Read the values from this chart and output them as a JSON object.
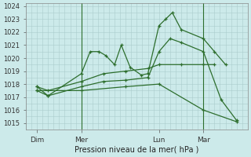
{
  "xlabel": "Pression niveau de la mer( hPa )",
  "background_color": "#cceaea",
  "grid_color": "#aacccc",
  "line_color": "#2d6e2d",
  "ylim": [
    1014.5,
    1024.2
  ],
  "xlim": [
    -0.5,
    9.5
  ],
  "x_tick_labels": [
    "Dim",
    "Mer",
    "Lun",
    "Mar"
  ],
  "x_tick_positions": [
    0,
    2,
    5.5,
    7.5
  ],
  "x_vlines": [
    2,
    7.5
  ],
  "series": [
    {
      "x": [
        0,
        0.5,
        2,
        2.4,
        2.8,
        3.1,
        3.5,
        3.8,
        4.2,
        4.7,
        5.0,
        5.5,
        5.8,
        6.1,
        6.5,
        7.5,
        8.0,
        8.5
      ],
      "y": [
        1017.8,
        1017.1,
        1018.8,
        1020.5,
        1020.5,
        1020.2,
        1019.5,
        1021.0,
        1019.3,
        1018.7,
        1018.8,
        1022.5,
        1023.0,
        1023.5,
        1022.2,
        1021.5,
        1020.5,
        1019.5
      ]
    },
    {
      "x": [
        0,
        0.5,
        2,
        3.0,
        4.0,
        5.0,
        5.5,
        6.5,
        7.5,
        8.0
      ],
      "y": [
        1017.8,
        1017.5,
        1018.2,
        1018.8,
        1019.0,
        1019.2,
        1019.5,
        1019.5,
        1019.5,
        1019.5
      ]
    },
    {
      "x": [
        0,
        0.5,
        2,
        3.0,
        4.0,
        5.0,
        5.5,
        6.0,
        6.5,
        7.5,
        8.3,
        9.0
      ],
      "y": [
        1017.5,
        1017.1,
        1017.8,
        1018.2,
        1018.3,
        1018.5,
        1020.5,
        1021.5,
        1021.2,
        1020.5,
        1016.8,
        1015.2
      ]
    },
    {
      "x": [
        0,
        2,
        4,
        5.5,
        7.5,
        9.0
      ],
      "y": [
        1017.5,
        1017.5,
        1017.8,
        1018.0,
        1016.0,
        1015.1
      ]
    }
  ]
}
